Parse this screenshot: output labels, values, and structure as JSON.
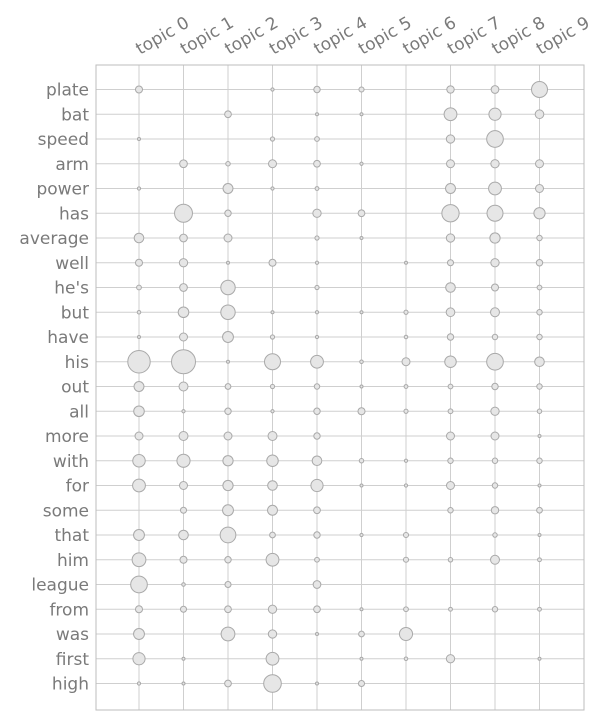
{
  "chart_data": {
    "type": "scatter",
    "title": "",
    "xlabel": "",
    "ylabel": "",
    "grid": true,
    "x_tick_labels": [
      "topic 0",
      "topic 1",
      "topic 2",
      "topic 3",
      "topic 4",
      "topic 5",
      "topic 6",
      "topic 7",
      "topic 8",
      "topic 9"
    ],
    "y_tick_labels": [
      "plate",
      "bat",
      "speed",
      "arm",
      "power",
      "has",
      "average",
      "well",
      "he's",
      "but",
      "have",
      "his",
      "out",
      "all",
      "more",
      "with",
      "for",
      "some",
      "that",
      "him",
      "league",
      "from",
      "was",
      "first",
      "high"
    ],
    "value_encoding": "relative bubble size (0-1)",
    "rows": [
      [
        0.22,
        0,
        0,
        0.1,
        0.2,
        0.16,
        0,
        0.23,
        0.24,
        0.5
      ],
      [
        0,
        0,
        0.21,
        0,
        0.09,
        0.09,
        0,
        0.4,
        0.38,
        0.27
      ],
      [
        0.08,
        0,
        0,
        0.13,
        0.15,
        0,
        0,
        0.26,
        0.52,
        0
      ],
      [
        0,
        0.24,
        0.14,
        0.25,
        0.21,
        0.1,
        0,
        0.25,
        0.26,
        0.25
      ],
      [
        0.1,
        0,
        0.31,
        0.1,
        0.12,
        0,
        0,
        0.31,
        0.4,
        0.25
      ],
      [
        0,
        0.56,
        0.2,
        0,
        0.26,
        0.21,
        0,
        0.54,
        0.5,
        0.35
      ],
      [
        0.3,
        0.24,
        0.25,
        0,
        0.13,
        0.05,
        0,
        0.26,
        0.32,
        0.17
      ],
      [
        0.22,
        0.26,
        0.09,
        0.22,
        0.1,
        0,
        0.06,
        0.19,
        0.26,
        0.2
      ],
      [
        0.15,
        0.24,
        0.45,
        0,
        0.13,
        0,
        0,
        0.3,
        0.22,
        0.15
      ],
      [
        0.11,
        0.33,
        0.45,
        0.09,
        0.1,
        0.04,
        0.13,
        0.27,
        0.28,
        0.17
      ],
      [
        0.09,
        0.25,
        0.34,
        0.13,
        0.1,
        0,
        0.11,
        0.2,
        0.17,
        0.17
      ],
      [
        0.7,
        0.75,
        0.09,
        0.5,
        0.4,
        0.11,
        0.25,
        0.36,
        0.52,
        0.3
      ],
      [
        0.31,
        0.28,
        0.18,
        0.13,
        0.17,
        0.05,
        0.12,
        0.15,
        0.2,
        0.17
      ],
      [
        0.33,
        0.1,
        0.2,
        0.1,
        0.2,
        0.22,
        0.13,
        0.15,
        0.26,
        0.14
      ],
      [
        0.25,
        0.28,
        0.25,
        0.28,
        0.2,
        0,
        0,
        0.25,
        0.25,
        0.09
      ],
      [
        0.39,
        0.41,
        0.32,
        0.36,
        0.3,
        0.14,
        0.1,
        0.17,
        0.17,
        0.17
      ],
      [
        0.4,
        0.25,
        0.32,
        0.3,
        0.38,
        0.08,
        0.1,
        0.25,
        0.17,
        0.08
      ],
      [
        0,
        0.19,
        0.34,
        0.31,
        0.21,
        0,
        0,
        0.17,
        0.23,
        0.18
      ],
      [
        0.34,
        0.3,
        0.49,
        0.18,
        0.2,
        0.1,
        0.16,
        0,
        0.14,
        0.09
      ],
      [
        0.43,
        0.22,
        0.2,
        0.4,
        0.15,
        0,
        0.16,
        0.14,
        0.28,
        0.12
      ],
      [
        0.52,
        0.11,
        0.19,
        0,
        0.24,
        0,
        0,
        0,
        0,
        0
      ],
      [
        0.22,
        0.19,
        0.21,
        0.26,
        0.21,
        0.08,
        0.15,
        0.12,
        0.17,
        0.12
      ],
      [
        0.34,
        0,
        0.43,
        0.26,
        0.08,
        0.18,
        0.41,
        0,
        0,
        0
      ],
      [
        0.38,
        0.07,
        0,
        0.4,
        0,
        0.07,
        0.11,
        0.26,
        0,
        0.09
      ],
      [
        0.1,
        0.08,
        0.21,
        0.55,
        0.09,
        0.19,
        0,
        0,
        0,
        0
      ]
    ]
  }
}
